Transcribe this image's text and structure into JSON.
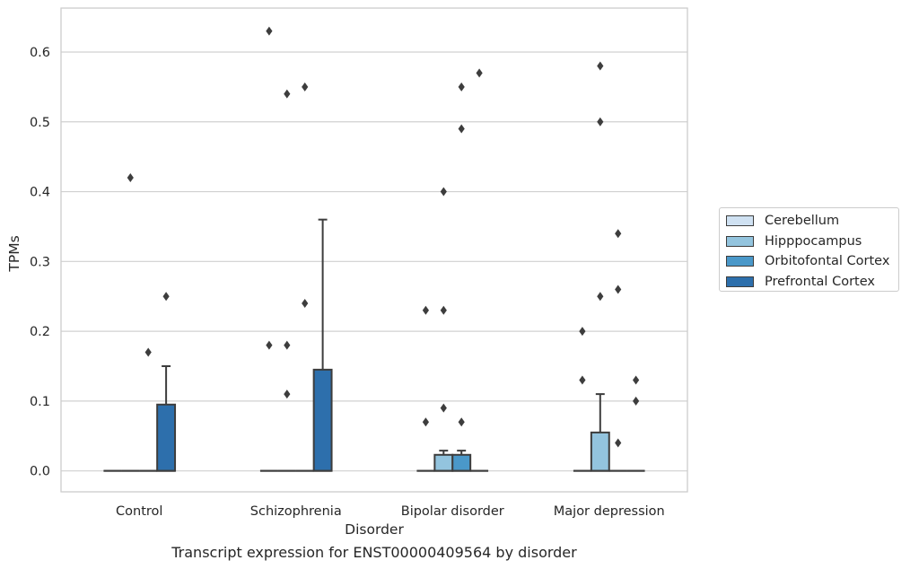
{
  "chart_data": {
    "type": "box",
    "title": "",
    "caption": "Transcript expression for ENST00000409564 by disorder",
    "xlabel": "Disorder",
    "ylabel": "TPMs",
    "ylim": [
      -0.03,
      0.663
    ],
    "yticks": [
      "0.0",
      "0.1",
      "0.2",
      "0.3",
      "0.4",
      "0.5",
      "0.6"
    ],
    "grid": "horizontal",
    "legend_position": "right",
    "categories": [
      "Control",
      "Schizophrenia",
      "Bipolar disorder",
      "Major depression"
    ],
    "series": [
      {
        "name": "Cerebellum",
        "color": "#cfe1f2",
        "boxes": [
          {
            "q1": 0,
            "median": 0,
            "q3": 0,
            "whisker_low": 0,
            "whisker_high": 0,
            "outliers": []
          },
          {
            "q1": 0,
            "median": 0,
            "q3": 0,
            "whisker_low": 0,
            "whisker_high": 0,
            "outliers": [
              0.18,
              0.63
            ]
          },
          {
            "q1": 0,
            "median": 0,
            "q3": 0,
            "whisker_low": 0,
            "whisker_high": 0,
            "outliers": [
              0.07,
              0.23
            ]
          },
          {
            "q1": 0,
            "median": 0,
            "q3": 0,
            "whisker_low": 0,
            "whisker_high": 0,
            "outliers": [
              0.13,
              0.2
            ]
          }
        ]
      },
      {
        "name": "Hipppocampus",
        "color": "#93c4de",
        "boxes": [
          {
            "q1": 0,
            "median": 0,
            "q3": 0,
            "whisker_low": 0,
            "whisker_high": 0,
            "outliers": [
              0.42
            ]
          },
          {
            "q1": 0,
            "median": 0,
            "q3": 0,
            "whisker_low": 0,
            "whisker_high": 0,
            "outliers": [
              0.11,
              0.18,
              0.54
            ]
          },
          {
            "q1": 0,
            "median": 0,
            "q3": 0.023,
            "whisker_low": 0,
            "whisker_high": 0.029,
            "outliers": [
              0.09,
              0.23,
              0.4
            ]
          },
          {
            "q1": 0,
            "median": 0,
            "q3": 0.055,
            "whisker_low": 0,
            "whisker_high": 0.11,
            "outliers": [
              0.25,
              0.5,
              0.58
            ]
          }
        ]
      },
      {
        "name": "Orbitofontal Cortex",
        "color": "#4a98c9",
        "boxes": [
          {
            "q1": 0,
            "median": 0,
            "q3": 0,
            "whisker_low": 0,
            "whisker_high": 0,
            "outliers": [
              0.17
            ]
          },
          {
            "q1": 0,
            "median": 0,
            "q3": 0,
            "whisker_low": 0,
            "whisker_high": 0,
            "outliers": [
              0.24,
              0.55
            ]
          },
          {
            "q1": 0,
            "median": 0,
            "q3": 0.023,
            "whisker_low": 0,
            "whisker_high": 0.029,
            "outliers": [
              0.07,
              0.49,
              0.55
            ]
          },
          {
            "q1": 0,
            "median": 0,
            "q3": 0,
            "whisker_low": 0,
            "whisker_high": 0,
            "outliers": [
              0.04,
              0.26,
              0.34
            ]
          }
        ]
      },
      {
        "name": "Prefrontal Cortex",
        "color": "#2d6fac",
        "boxes": [
          {
            "q1": 0,
            "median": 0,
            "q3": 0.095,
            "whisker_low": 0,
            "whisker_high": 0.15,
            "outliers": [
              0.25
            ]
          },
          {
            "q1": 0,
            "median": 0,
            "q3": 0.145,
            "whisker_low": 0,
            "whisker_high": 0.36,
            "outliers": []
          },
          {
            "q1": 0,
            "median": 0,
            "q3": 0,
            "whisker_low": 0,
            "whisker_high": 0,
            "outliers": [
              0.57
            ]
          },
          {
            "q1": 0,
            "median": 0,
            "q3": 0,
            "whisker_low": 0,
            "whisker_high": 0,
            "outliers": [
              0.1,
              0.13
            ]
          }
        ]
      }
    ]
  }
}
